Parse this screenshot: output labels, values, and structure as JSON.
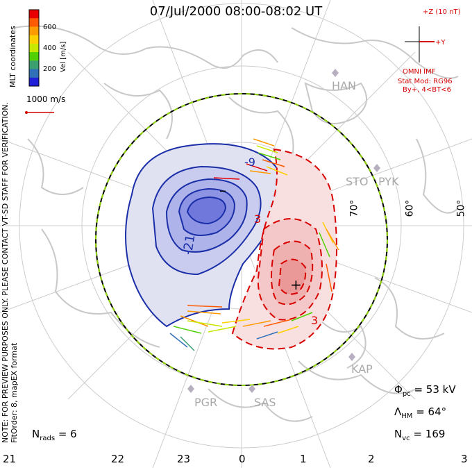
{
  "title": "07/Jul/2000 08:00-08:02 UT",
  "colorbar": {
    "label": "Vel [m/s]",
    "ticks": [
      "600",
      "400",
      "200"
    ],
    "colors": [
      "#e80000",
      "#ff5a00",
      "#ff9a00",
      "#ffd000",
      "#c8e800",
      "#50d000",
      "#3aa070",
      "#3070b8",
      "#2020d8"
    ]
  },
  "coords_label": "MLT coordinates",
  "notice": "NOTE: FOR PREVIEW PURPOSES ONLY. PLEASE CONTACT VT-SD STAFF FOR VERIFICATION.",
  "fit_info": "FitOrder: 8, mapEX format",
  "vector_scale": "1000 m/s",
  "imf": {
    "bz_label": "+Z (10 nT)",
    "by_label": "+Y",
    "source": "OMNI IMF",
    "model": "Stat Mod: RG96",
    "condition": "By+, 4<BT<6"
  },
  "latitudes": [
    "70°",
    "60°",
    "50°"
  ],
  "stations": [
    "HAN",
    "STO",
    "PYK",
    "KAP",
    "PGR",
    "SAS"
  ],
  "contour_labels": [
    "-9",
    "-21",
    "3",
    "3"
  ],
  "markers": {
    "min": "–",
    "max": "+"
  },
  "stats": {
    "phi_label": "Φ",
    "phi_sub": "pc",
    "phi_value": "= 53 kV",
    "lam_label": "Λ",
    "lam_sub": "HM",
    "lam_value": "= 64°",
    "nvc_label": "N",
    "nvc_sub": "vc",
    "nvc_value": "= 169",
    "nrads_label": "N",
    "nrads_sub": "rads",
    "nrads_value": "= 6"
  },
  "mlt_labels": [
    "21",
    "22",
    "23",
    "0",
    "1",
    "2",
    "3"
  ]
}
